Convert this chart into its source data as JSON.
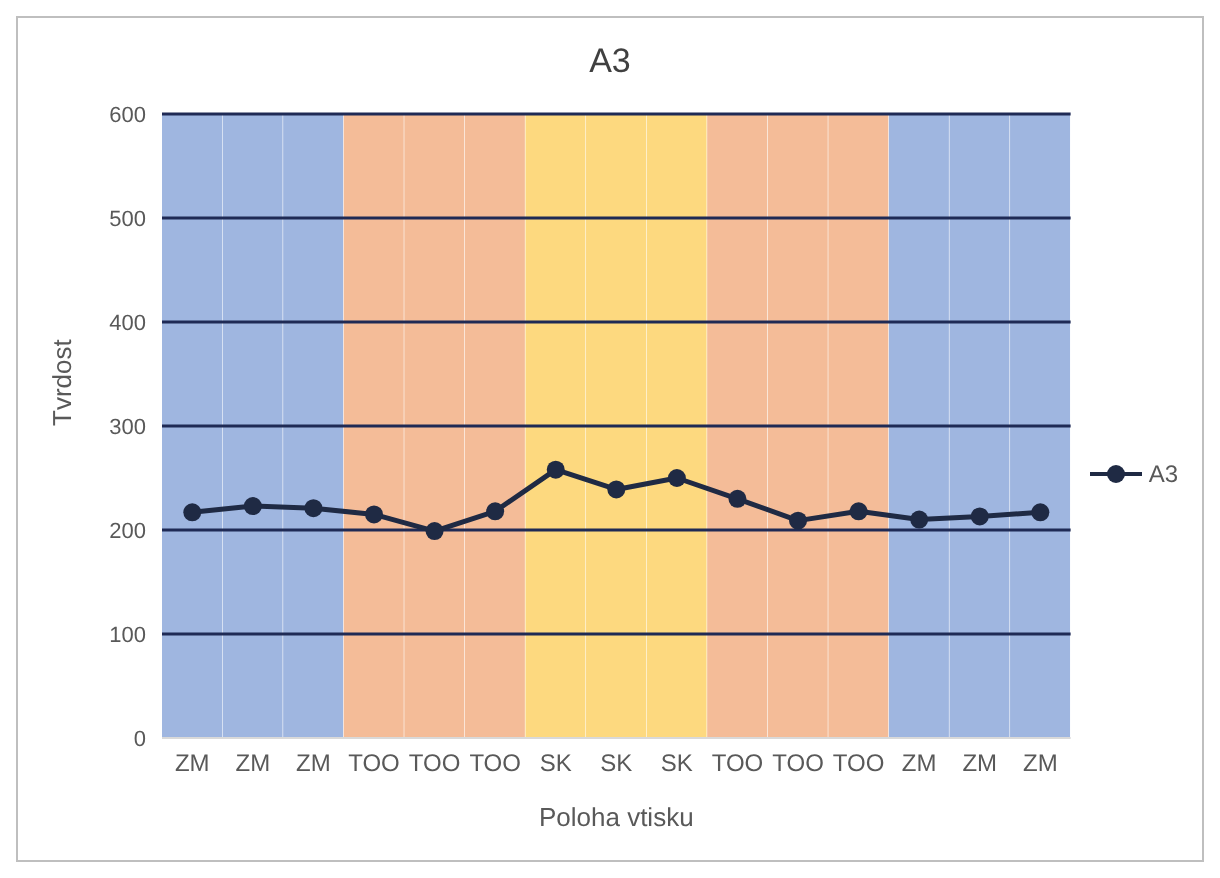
{
  "chart_data": {
    "type": "line",
    "title": "A3",
    "xlabel": "Poloha vtisku",
    "ylabel": "Tvrdost",
    "categories": [
      "ZM",
      "ZM",
      "ZM",
      "TOO",
      "TOO",
      "TOO",
      "SK",
      "SK",
      "SK",
      "TOO",
      "TOO",
      "TOO",
      "ZM",
      "ZM",
      "ZM"
    ],
    "ylim": [
      0,
      600
    ],
    "yticks": [
      0,
      100,
      200,
      300,
      400,
      500,
      600
    ],
    "grid": "y",
    "legend": "right",
    "marker": "circle",
    "series": [
      {
        "type": "bar",
        "values": [
          600,
          600,
          600,
          600,
          600,
          600,
          600,
          600,
          600,
          600,
          600,
          600,
          600,
          600,
          600
        ],
        "colors": [
          "#9fb6e0",
          "#9fb6e0",
          "#9fb6e0",
          "#f4bc98",
          "#f4bc98",
          "#f4bc98",
          "#fdd97f",
          "#fdd97f",
          "#fdd97f",
          "#f4bc98",
          "#f4bc98",
          "#f4bc98",
          "#9fb6e0",
          "#9fb6e0",
          "#9fb6e0"
        ]
      },
      {
        "name": "A3",
        "color": "#1f2a44",
        "values": [
          217,
          223,
          221,
          215,
          199,
          218,
          258,
          239,
          250,
          230,
          209,
          218,
          210,
          213,
          217
        ]
      }
    ]
  }
}
